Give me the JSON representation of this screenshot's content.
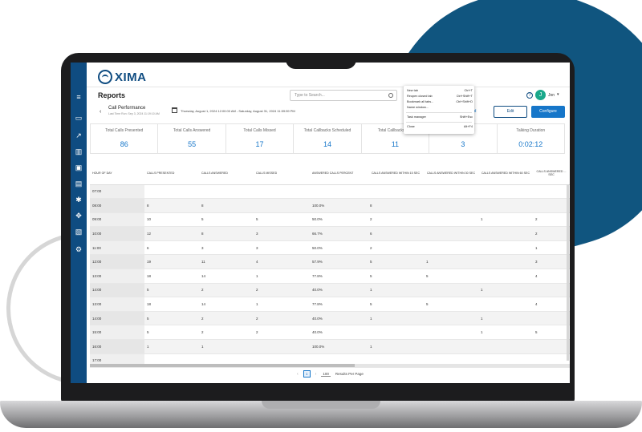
{
  "app": {
    "logo_text": "XIMA"
  },
  "header": {
    "title": "Reports",
    "search_placeholder": "Type to Search...",
    "username": "Jon",
    "avatar_letter": "J",
    "help_icon": "?"
  },
  "report": {
    "name": "Call Performance",
    "last_run": "Last Time Run: Sep 3, 2024 11:19:10 AM",
    "date_range": "Thursday, August 1, 2024 12:00:00 AM - Saturday, August 31, 2024 11:59:59 PM",
    "cloud_label": "loud",
    "edit_label": "Edit",
    "configure_label": "Configure"
  },
  "summary_cards": [
    {
      "label": "Total Calls Presented",
      "value": "86"
    },
    {
      "label": "Total Calls Answered",
      "value": "55"
    },
    {
      "label": "Total Calls Missed",
      "value": "17"
    },
    {
      "label": "Total Callbacks Scheduled",
      "value": "14"
    },
    {
      "label": "Total Callbacks Ans",
      "value": "11"
    },
    {
      "label": "Aborted",
      "value": "3"
    },
    {
      "label": "Talking Duration",
      "value": "0:02:12"
    }
  ],
  "table": {
    "columns": [
      "HOUR OF DAY",
      "CALLS PRESENTED",
      "CALLS ANSWERED",
      "CALLS MISSED",
      "ANSWERED CALLS PERCENT",
      "CALLS ANSWERED WITHIN 15 SEC",
      "CALLS ANSWERED WITHIN 30 SEC",
      "CALLS ANSWERED WITHIN 60 SEC",
      "CALLS ANSWERED ... SEC"
    ],
    "rows": [
      [
        "07:00",
        "",
        "",
        "",
        "",
        "",
        "",
        "",
        ""
      ],
      [
        "08:00",
        "8",
        "8",
        "",
        "100.0%",
        "8",
        "",
        "",
        ""
      ],
      [
        "09:00",
        "10",
        "5",
        "5",
        "50.0%",
        "2",
        "",
        "1",
        "2"
      ],
      [
        "10:00",
        "12",
        "8",
        "3",
        "66.7%",
        "6",
        "",
        "",
        "2"
      ],
      [
        "11:00",
        "6",
        "3",
        "3",
        "50.0%",
        "2",
        "",
        "",
        "1"
      ],
      [
        "12:00",
        "19",
        "11",
        "4",
        "57.9%",
        "5",
        "1",
        "",
        "3"
      ],
      [
        "13:00",
        "18",
        "14",
        "1",
        "77.8%",
        "5",
        "5",
        "",
        "4"
      ],
      [
        "14:00",
        "5",
        "2",
        "2",
        "40.0%",
        "1",
        "",
        "1",
        ""
      ],
      [
        "13:00",
        "18",
        "14",
        "1",
        "77.8%",
        "5",
        "5",
        "",
        "4"
      ],
      [
        "14:00",
        "5",
        "2",
        "2",
        "40.0%",
        "1",
        "",
        "1",
        ""
      ],
      [
        "15:00",
        "5",
        "2",
        "2",
        "40.0%",
        "",
        "",
        "1",
        "5"
      ],
      [
        "16:00",
        "1",
        "1",
        "",
        "100.0%",
        "1",
        "",
        "",
        ""
      ],
      [
        "17:00",
        "",
        "",
        "",
        "",
        "",
        "",
        "",
        ""
      ]
    ]
  },
  "pagination": {
    "page": "1",
    "page_size": "100",
    "page_size_label": "Results Per Page",
    "prev": "‹",
    "next": "›"
  },
  "context_menu": [
    {
      "label": "New tab",
      "shortcut": "Ctrl+T"
    },
    {
      "label": "Reopen closed tab",
      "shortcut": "Ctrl+Shift+T"
    },
    {
      "label": "Bookmark all tabs...",
      "shortcut": "Ctrl+Shift+D"
    },
    {
      "label": "Name window...",
      "shortcut": ""
    },
    {
      "label": "Task manager",
      "shortcut": "Shift+Esc"
    },
    {
      "label": "Close",
      "shortcut": "Alt+F4"
    }
  ],
  "sidebar_icons": [
    "menu-icon",
    "document-icon",
    "chart-icon",
    "bar-chart-icon",
    "contact-card-icon",
    "id-card-icon",
    "gear-alt-icon",
    "move-icon",
    "report-icon",
    "settings-icon"
  ],
  "colors": {
    "brand": "#0f4c81",
    "accent": "#1676c9",
    "blob": "#10557f"
  }
}
